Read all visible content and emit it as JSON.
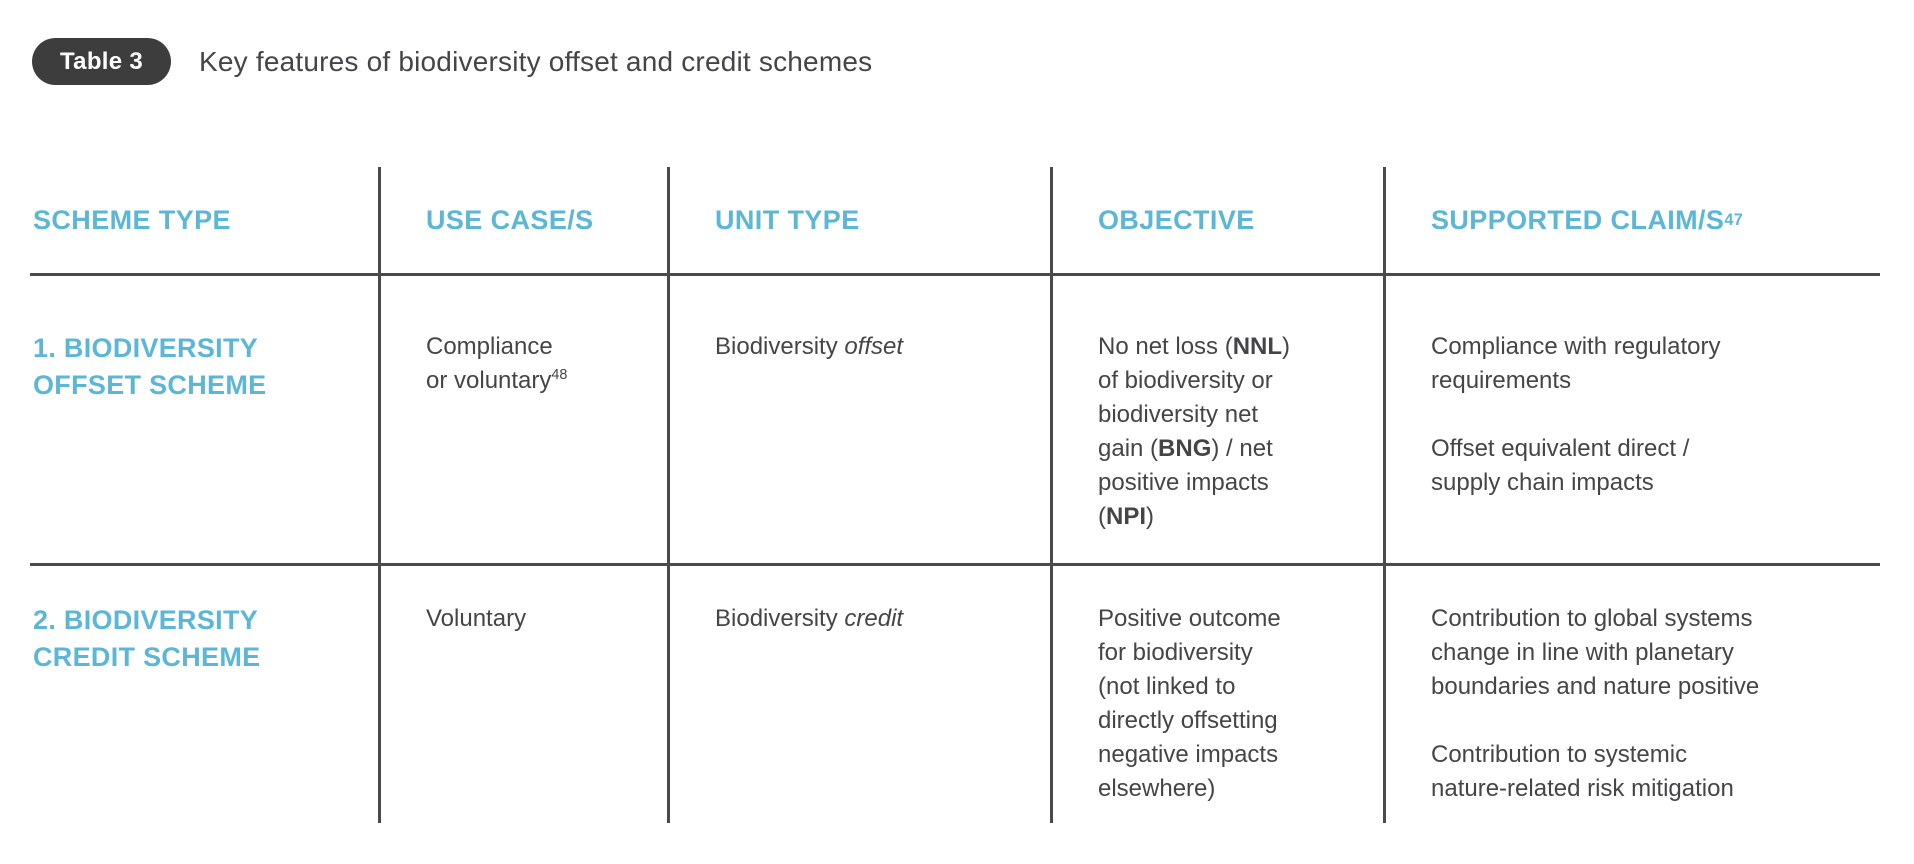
{
  "badge": {
    "label": "Table 3"
  },
  "title": "Key features of biodiversity offset and credit schemes",
  "colors": {
    "accent": "#5CB7D6",
    "text": "#454547",
    "line": "#4B4B4D",
    "badge_bg": "#3D3D3D"
  },
  "table": {
    "headers": [
      {
        "segments": [
          {
            "t": "SCHEME TYPE"
          }
        ]
      },
      {
        "segments": [
          {
            "t": "USE CASE/S"
          }
        ]
      },
      {
        "segments": [
          {
            "t": "UNIT TYPE"
          }
        ]
      },
      {
        "segments": [
          {
            "t": "OBJECTIVE"
          }
        ]
      },
      {
        "segments": [
          {
            "t": "SUPPORTED CLAIM/S"
          },
          {
            "t": "47",
            "sup": true
          }
        ]
      }
    ],
    "rows": [
      {
        "cells": [
          {
            "kind": "scheme",
            "paras": [
              [
                [
                  {
                    "t": "1. BIODIVERSITY"
                  }
                ],
                [
                  {
                    "t": "OFFSET SCHEME"
                  }
                ]
              ]
            ]
          },
          {
            "kind": "body",
            "paras": [
              [
                [
                  {
                    "t": "Compliance"
                  }
                ],
                [
                  {
                    "t": "or voluntary"
                  },
                  {
                    "t": "48",
                    "sup": true
                  }
                ]
              ]
            ]
          },
          {
            "kind": "body",
            "paras": [
              [
                [
                  {
                    "t": "Biodiversity "
                  },
                  {
                    "t": "offset",
                    "i": true
                  }
                ]
              ]
            ]
          },
          {
            "kind": "body",
            "paras": [
              [
                [
                  {
                    "t": "No net loss ("
                  },
                  {
                    "t": "NNL",
                    "b": true
                  },
                  {
                    "t": ")"
                  }
                ],
                [
                  {
                    "t": "of biodiversity or"
                  }
                ],
                [
                  {
                    "t": "biodiversity net"
                  }
                ],
                [
                  {
                    "t": "gain ("
                  },
                  {
                    "t": "BNG",
                    "b": true
                  },
                  {
                    "t": ") / net"
                  }
                ],
                [
                  {
                    "t": "positive impacts"
                  }
                ],
                [
                  {
                    "t": "("
                  },
                  {
                    "t": "NPI",
                    "b": true
                  },
                  {
                    "t": ")"
                  }
                ]
              ]
            ]
          },
          {
            "kind": "body",
            "paras": [
              [
                [
                  {
                    "t": "Compliance with regulatory"
                  }
                ],
                [
                  {
                    "t": "requirements"
                  }
                ]
              ],
              [
                [
                  {
                    "t": "Offset equivalent direct /"
                  }
                ],
                [
                  {
                    "t": "supply chain impacts"
                  }
                ]
              ]
            ]
          }
        ]
      },
      {
        "cells": [
          {
            "kind": "scheme",
            "paras": [
              [
                [
                  {
                    "t": "2. BIODIVERSITY"
                  }
                ],
                [
                  {
                    "t": "CREDIT SCHEME"
                  }
                ]
              ]
            ]
          },
          {
            "kind": "body",
            "paras": [
              [
                [
                  {
                    "t": "Voluntary"
                  }
                ]
              ]
            ]
          },
          {
            "kind": "body",
            "paras": [
              [
                [
                  {
                    "t": "Biodiversity "
                  },
                  {
                    "t": "credit",
                    "i": true
                  }
                ]
              ]
            ]
          },
          {
            "kind": "body",
            "paras": [
              [
                [
                  {
                    "t": "Positive outcome"
                  }
                ],
                [
                  {
                    "t": "for biodiversity"
                  }
                ],
                [
                  {
                    "t": "(not linked to"
                  }
                ],
                [
                  {
                    "t": "directly offsetting"
                  }
                ],
                [
                  {
                    "t": "negative impacts"
                  }
                ],
                [
                  {
                    "t": "elsewhere)"
                  }
                ]
              ]
            ]
          },
          {
            "kind": "body",
            "paras": [
              [
                [
                  {
                    "t": "Contribution to global systems"
                  }
                ],
                [
                  {
                    "t": "change in line with planetary"
                  }
                ],
                [
                  {
                    "t": "boundaries and nature positive"
                  }
                ]
              ],
              [
                [
                  {
                    "t": "Contribution to systemic"
                  }
                ],
                [
                  {
                    "t": "nature-related risk mitigation"
                  }
                ]
              ]
            ]
          }
        ]
      }
    ]
  }
}
